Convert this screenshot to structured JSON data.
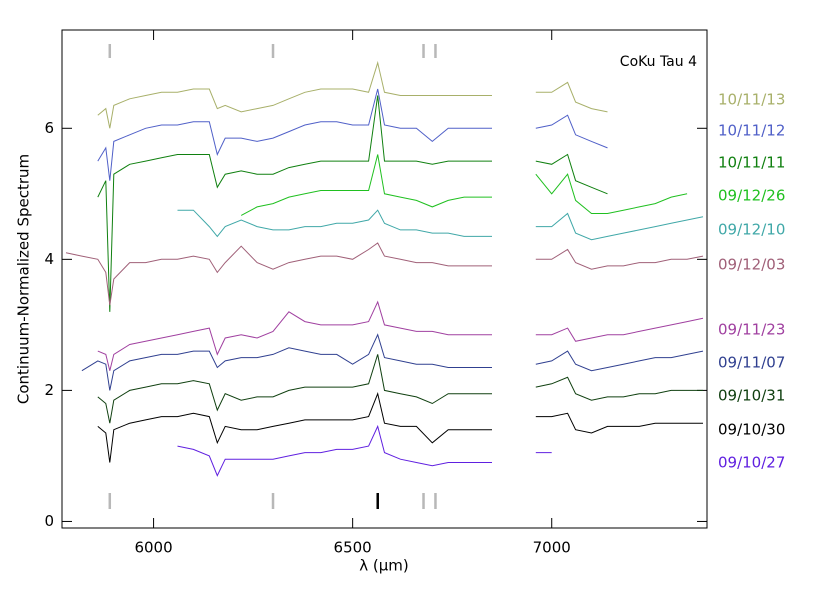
{
  "chart_data": {
    "type": "line",
    "annotation": "CoKu Tau 4",
    "xlabel": "λ (μm)",
    "ylabel": "Continuum-Normalized Spectrum",
    "xlim": [
      5770,
      7390
    ],
    "ylim": [
      -0.1,
      7.5
    ],
    "xticks": [
      6000,
      6500,
      7000
    ],
    "yticks": [
      0,
      2,
      4,
      6
    ],
    "line_markers": [
      {
        "x": 5890,
        "color": "#b8b8b8"
      },
      {
        "x": 6300,
        "color": "#b8b8b8"
      },
      {
        "x": 6678,
        "color": "#b8b8b8"
      },
      {
        "x": 6708,
        "color": "#b8b8b8"
      },
      {
        "x": 6563,
        "color": "#000000"
      }
    ],
    "x": [
      5780,
      5820,
      5860,
      5880,
      5890,
      5900,
      5940,
      5980,
      6020,
      6060,
      6100,
      6140,
      6160,
      6180,
      6220,
      6260,
      6300,
      6340,
      6380,
      6420,
      6460,
      6500,
      6540,
      6563,
      6580,
      6620,
      6660,
      6700,
      6740,
      6780,
      6820,
      6850,
      6900,
      6960,
      7000,
      7040,
      7060,
      7100,
      7140,
      7180,
      7220,
      7260,
      7300,
      7340,
      7380
    ],
    "series": [
      {
        "name": "10/11/13",
        "color": "#a8b06a",
        "values": [
          null,
          null,
          6.2,
          6.3,
          6.0,
          6.35,
          6.45,
          6.5,
          6.55,
          6.55,
          6.6,
          6.6,
          6.3,
          6.35,
          6.25,
          6.3,
          6.35,
          6.45,
          6.55,
          6.6,
          6.6,
          6.6,
          6.55,
          7.0,
          6.55,
          6.5,
          6.5,
          6.5,
          6.5,
          6.5,
          6.5,
          6.5,
          null,
          6.55,
          6.55,
          6.7,
          6.4,
          6.3,
          6.25,
          null,
          null,
          null,
          null,
          null,
          null
        ]
      },
      {
        "name": "10/11/12",
        "color": "#5060c8",
        "values": [
          null,
          null,
          5.5,
          5.7,
          5.2,
          5.8,
          5.9,
          6.0,
          6.05,
          6.05,
          6.1,
          6.1,
          5.6,
          5.85,
          5.85,
          5.8,
          5.85,
          5.95,
          6.05,
          6.1,
          6.1,
          6.05,
          6.05,
          6.6,
          6.05,
          6.0,
          6.0,
          5.8,
          6.0,
          6.0,
          6.0,
          6.0,
          null,
          6.0,
          6.05,
          6.2,
          5.9,
          5.8,
          5.7,
          null,
          null,
          null,
          null,
          null,
          null
        ]
      },
      {
        "name": "10/11/11",
        "color": "#108010",
        "values": [
          null,
          null,
          4.95,
          5.2,
          3.2,
          5.3,
          5.45,
          5.5,
          5.55,
          5.6,
          5.6,
          5.6,
          5.1,
          5.3,
          5.35,
          5.3,
          5.3,
          5.4,
          5.45,
          5.5,
          5.5,
          5.5,
          5.5,
          6.5,
          5.5,
          5.5,
          5.5,
          5.45,
          5.5,
          5.5,
          5.5,
          5.5,
          null,
          5.5,
          5.45,
          5.6,
          5.2,
          5.1,
          5.0,
          null,
          null,
          null,
          null,
          null,
          null
        ]
      },
      {
        "name": "09/12/26",
        "color": "#20c020",
        "values": [
          null,
          null,
          null,
          null,
          null,
          null,
          null,
          null,
          null,
          null,
          null,
          null,
          null,
          null,
          4.67,
          4.8,
          4.85,
          4.95,
          5.0,
          5.05,
          5.05,
          5.05,
          5.05,
          5.6,
          5.0,
          4.95,
          4.9,
          4.8,
          4.9,
          4.95,
          4.95,
          4.95,
          null,
          5.3,
          5.0,
          5.3,
          4.9,
          4.7,
          4.7,
          4.75,
          4.8,
          4.85,
          4.95,
          5.0,
          null
        ]
      },
      {
        "name": "09/12/10",
        "color": "#40a8a8",
        "values": [
          null,
          null,
          null,
          null,
          null,
          null,
          null,
          null,
          null,
          4.75,
          4.75,
          4.5,
          4.35,
          4.5,
          4.6,
          4.5,
          4.45,
          4.45,
          4.5,
          4.5,
          4.55,
          4.55,
          4.6,
          4.75,
          4.55,
          4.45,
          4.45,
          4.4,
          4.4,
          4.35,
          4.35,
          4.35,
          null,
          4.5,
          4.5,
          4.7,
          4.4,
          4.3,
          4.35,
          4.4,
          4.45,
          4.5,
          4.55,
          4.6,
          4.65
        ]
      },
      {
        "name": "09/12/03",
        "color": "#a06078",
        "values": [
          4.1,
          4.05,
          4.0,
          3.8,
          3.3,
          3.7,
          3.95,
          3.95,
          4.0,
          4.0,
          4.05,
          4.0,
          3.8,
          3.95,
          4.2,
          3.95,
          3.85,
          3.95,
          4.0,
          4.05,
          4.05,
          4.0,
          4.15,
          4.25,
          4.05,
          4.0,
          3.95,
          3.95,
          3.9,
          3.9,
          3.9,
          3.9,
          null,
          4.0,
          4.0,
          4.15,
          3.95,
          3.85,
          3.9,
          3.9,
          3.95,
          3.95,
          4.0,
          4.0,
          4.05
        ]
      },
      {
        "name": "09/11/23",
        "color": "#a040a0",
        "values": [
          null,
          null,
          2.6,
          2.55,
          2.3,
          2.55,
          2.7,
          2.75,
          2.8,
          2.85,
          2.9,
          2.95,
          2.55,
          2.8,
          2.85,
          2.8,
          2.9,
          3.2,
          3.05,
          3.0,
          3.0,
          3.0,
          3.05,
          3.35,
          3.0,
          2.95,
          2.9,
          2.9,
          2.85,
          2.85,
          2.85,
          2.85,
          null,
          2.85,
          2.85,
          2.95,
          2.75,
          2.8,
          2.85,
          2.85,
          2.9,
          2.95,
          3.0,
          3.05,
          3.1
        ]
      },
      {
        "name": "09/11/07",
        "color": "#304090",
        "values": [
          null,
          2.3,
          2.45,
          2.4,
          2.0,
          2.3,
          2.45,
          2.5,
          2.55,
          2.55,
          2.6,
          2.6,
          2.35,
          2.45,
          2.5,
          2.5,
          2.55,
          2.65,
          2.6,
          2.55,
          2.55,
          2.4,
          2.55,
          2.85,
          2.5,
          2.45,
          2.4,
          2.4,
          2.35,
          2.35,
          2.35,
          2.35,
          null,
          2.4,
          2.45,
          2.6,
          2.4,
          2.3,
          2.35,
          2.4,
          2.45,
          2.5,
          2.5,
          2.55,
          2.6
        ]
      },
      {
        "name": "09/10/31",
        "color": "#104010",
        "values": [
          null,
          null,
          1.9,
          1.8,
          1.5,
          1.85,
          2.0,
          2.05,
          2.1,
          2.1,
          2.15,
          2.1,
          1.7,
          1.95,
          1.85,
          1.9,
          1.9,
          2.0,
          2.05,
          2.05,
          2.05,
          2.05,
          2.1,
          2.55,
          2.0,
          1.95,
          1.9,
          1.8,
          1.95,
          1.95,
          1.95,
          1.95,
          null,
          2.05,
          2.1,
          2.2,
          1.95,
          1.85,
          1.9,
          1.9,
          1.95,
          1.95,
          2.0,
          2.0,
          2.0
        ]
      },
      {
        "name": "09/10/30",
        "color": "#000000",
        "values": [
          null,
          null,
          1.45,
          1.35,
          0.9,
          1.4,
          1.5,
          1.55,
          1.6,
          1.6,
          1.65,
          1.6,
          1.2,
          1.45,
          1.4,
          1.4,
          1.45,
          1.5,
          1.55,
          1.55,
          1.55,
          1.55,
          1.6,
          1.95,
          1.5,
          1.45,
          1.45,
          1.2,
          1.4,
          1.4,
          1.4,
          1.4,
          null,
          1.6,
          1.6,
          1.65,
          1.4,
          1.35,
          1.45,
          1.45,
          1.45,
          1.5,
          1.5,
          1.5,
          1.5
        ]
      },
      {
        "name": "09/10/27",
        "color": "#6020e0",
        "values": [
          null,
          null,
          null,
          null,
          null,
          null,
          null,
          null,
          null,
          1.15,
          1.1,
          1.0,
          0.7,
          0.95,
          0.95,
          0.95,
          0.95,
          1.0,
          1.05,
          1.05,
          1.1,
          1.1,
          1.15,
          1.45,
          1.05,
          0.95,
          0.9,
          0.85,
          0.9,
          0.9,
          0.9,
          0.9,
          null,
          1.05,
          1.05,
          null,
          null,
          null,
          null,
          null,
          null,
          null,
          null,
          null,
          null
        ]
      }
    ]
  }
}
